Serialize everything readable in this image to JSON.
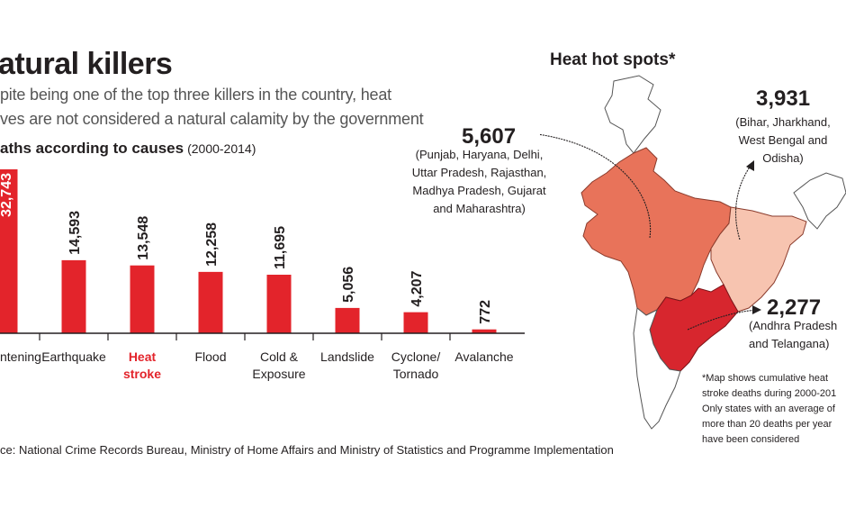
{
  "header": {
    "title": "atural killers",
    "subtitle_line1": "pite being one of the top three killers in the country, heat",
    "subtitle_line2": "ves are not considered a natural calamity by the government"
  },
  "chart_heading": {
    "label": "aths according to causes",
    "years": "(2000-2014)"
  },
  "chart_data": {
    "type": "bar",
    "categories": [
      "ntening",
      "Earthquake",
      "Heat stroke",
      "Flood",
      "Cold & Exposure",
      "Landslide",
      "Cyclone/ Tornado",
      "Avalanche"
    ],
    "category_lines": [
      [
        "ntening"
      ],
      [
        "Earthquake"
      ],
      [
        "Heat",
        "stroke"
      ],
      [
        "Flood"
      ],
      [
        "Cold &",
        "Exposure"
      ],
      [
        "Landslide"
      ],
      [
        "Cyclone/",
        "Tornado"
      ],
      [
        "Avalanche"
      ]
    ],
    "values": [
      32743,
      14593,
      13548,
      12258,
      11695,
      5056,
      4207,
      772
    ],
    "value_labels": [
      "32,743",
      "14,593",
      "13,548",
      "12,258",
      "11,695",
      "5,056",
      "4,207",
      "772"
    ],
    "highlight_index": 2,
    "ylim": [
      0,
      32743
    ],
    "bar_color": "#e3242b",
    "highlight_label_color": "#e3242b",
    "grid": false
  },
  "source": "ce: National Crime Records Bureau, Ministry of Home Affairs and Ministry of Statistics and Programme Implementation",
  "map": {
    "title": "Heat hot spots*",
    "regions": [
      {
        "value": "5,607",
        "lines": [
          "(Punjab, Haryana, Delhi,",
          "Uttar Pradesh, Rajasthan,",
          "Madhya Pradesh, Gujarat",
          "and Maharashtra)"
        ],
        "color": "#e8735a"
      },
      {
        "value": "3,931",
        "lines": [
          "(Bihar, Jharkhand,",
          "West Bengal and",
          "Odisha)"
        ],
        "color": "#f7c4b0"
      },
      {
        "value": "2,277",
        "lines": [
          "(Andhra Pradesh",
          "and Telangana)"
        ],
        "color": "#d7262e"
      }
    ],
    "footnote": [
      "*Map shows cumulative heat",
      "stroke deaths during 2000-201",
      "Only states with an average of",
      "more than 20 deaths per year",
      "have been considered"
    ]
  }
}
